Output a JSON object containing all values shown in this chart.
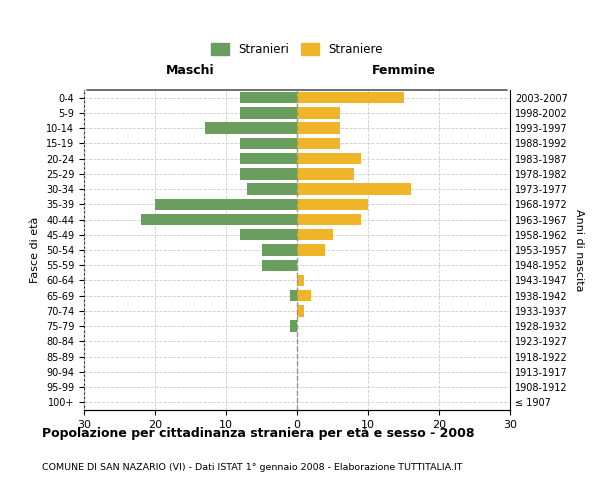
{
  "age_groups": [
    "100+",
    "95-99",
    "90-94",
    "85-89",
    "80-84",
    "75-79",
    "70-74",
    "65-69",
    "60-64",
    "55-59",
    "50-54",
    "45-49",
    "40-44",
    "35-39",
    "30-34",
    "25-29",
    "20-24",
    "15-19",
    "10-14",
    "5-9",
    "0-4"
  ],
  "birth_years": [
    "≤ 1907",
    "1908-1912",
    "1913-1917",
    "1918-1922",
    "1923-1927",
    "1928-1932",
    "1933-1937",
    "1938-1942",
    "1943-1947",
    "1948-1952",
    "1953-1957",
    "1958-1962",
    "1963-1967",
    "1968-1972",
    "1973-1977",
    "1978-1982",
    "1983-1987",
    "1988-1992",
    "1993-1997",
    "1998-2002",
    "2003-2007"
  ],
  "males": [
    0,
    0,
    0,
    0,
    0,
    1,
    0,
    1,
    0,
    5,
    5,
    8,
    22,
    20,
    7,
    8,
    8,
    8,
    13,
    8,
    8
  ],
  "females": [
    0,
    0,
    0,
    0,
    0,
    0,
    1,
    2,
    1,
    0,
    4,
    5,
    9,
    10,
    16,
    8,
    9,
    6,
    6,
    6,
    15
  ],
  "male_color": "#6a9e5e",
  "female_color": "#f0b429",
  "title": "Popolazione per cittadinanza straniera per età e sesso - 2008",
  "subtitle": "COMUNE DI SAN NAZARIO (VI) - Dati ISTAT 1° gennaio 2008 - Elaborazione TUTTITALIA.IT",
  "xlabel_left": "Maschi",
  "xlabel_right": "Femmine",
  "ylabel_left": "Fasce di età",
  "ylabel_right": "Anni di nascita",
  "legend_male": "Stranieri",
  "legend_female": "Straniere",
  "xlim": 30,
  "background_color": "#ffffff",
  "grid_color": "#cccccc"
}
